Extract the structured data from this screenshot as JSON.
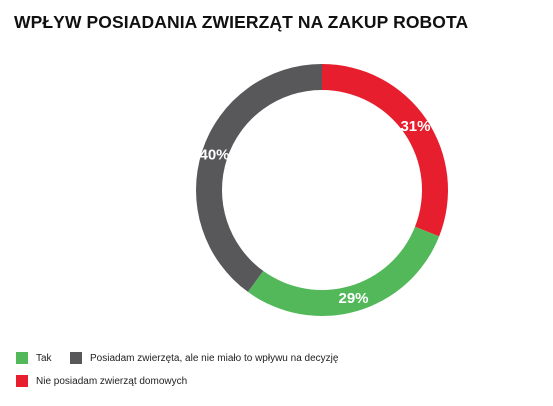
{
  "chart_data": {
    "type": "pie",
    "title": "WPŁYW POSIADANIA ZWIERZĄT NA ZAKUP ROBOTA",
    "legend_position": "bottom-left",
    "slices": [
      {
        "name": "Nie posiadam zwierząt domowych",
        "value": 31,
        "label": "31%",
        "color": "#e61e2d"
      },
      {
        "name": "Tak",
        "value": 29,
        "label": "29%",
        "color": "#52b85a"
      },
      {
        "name": "Posiadam zwierzęta, ale nie miało to wpływu na decyzję",
        "value": 40,
        "label": "40%",
        "color": "#58585b"
      }
    ]
  },
  "legend": [
    {
      "label": "Tak",
      "color": "#52b85a"
    },
    {
      "label": "Posiadam zwierzęta, ale nie miało to wpływu na decyzję",
      "color": "#58585b"
    },
    {
      "label": "Nie posiadam zwierząt domowych",
      "color": "#e61e2d"
    }
  ]
}
